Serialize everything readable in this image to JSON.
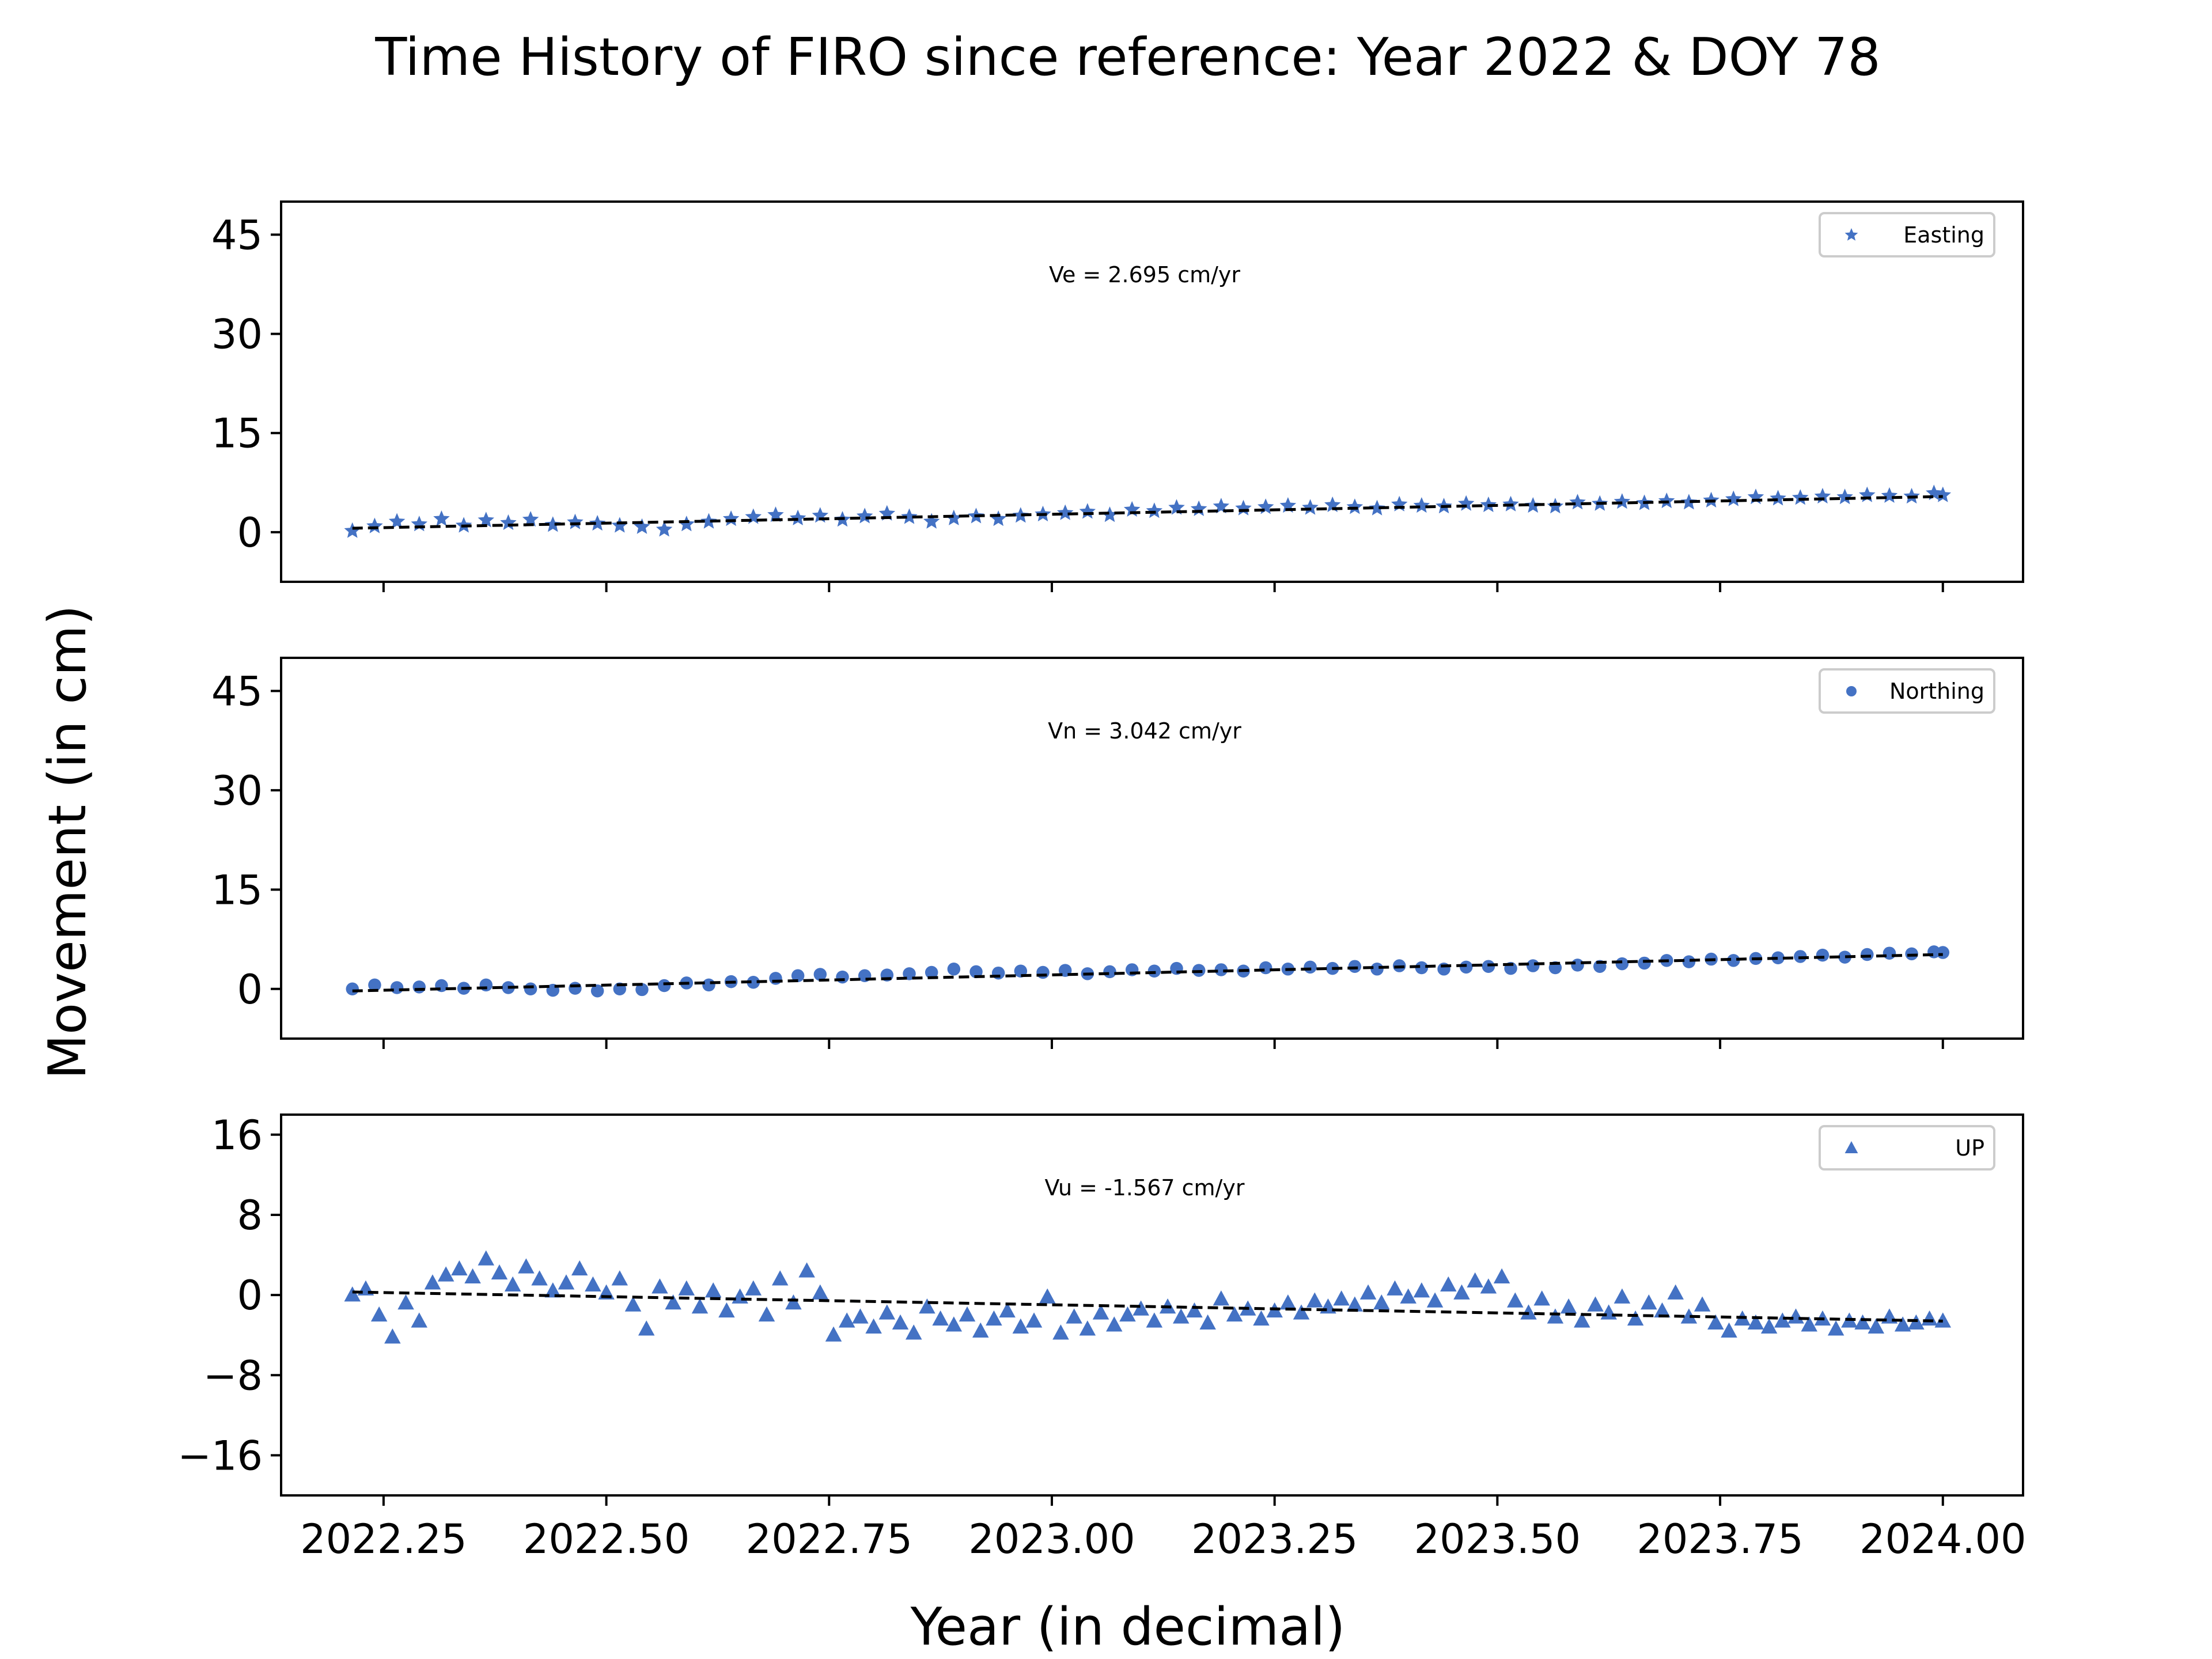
{
  "figure": {
    "title": "Time History of FIRO since reference: Year 2022 & DOY 78",
    "ylabel": "Movement (in cm)",
    "xlabel": "Year (in decimal)"
  },
  "colors": {
    "marker": "#4472c4",
    "trend": "#000000",
    "axes": "#000000"
  },
  "chart_data": [
    {
      "type": "scatter",
      "panel": "easting",
      "legend": "Easting",
      "marker": "star",
      "annotation": "Ve =  2.695 cm/yr",
      "xlim": [
        2022.135,
        2024.09
      ],
      "ylim": [
        -7.5,
        50
      ],
      "yticks": [
        0,
        15,
        30,
        45
      ],
      "ytick_labels": [
        "0",
        "15",
        "30",
        "45"
      ],
      "xticks": [
        2022.25,
        2022.5,
        2022.75,
        2023.0,
        2023.25,
        2023.5,
        2023.75,
        2024.0
      ],
      "show_xtick_labels": false,
      "trend": {
        "x": [
          2022.215,
          2024.0
        ],
        "y": [
          0.6,
          5.4
        ]
      },
      "series": [
        {
          "x": [
            2022.215,
            2022.24,
            2022.265,
            2022.29,
            2022.315,
            2022.34,
            2022.365,
            2022.39,
            2022.415,
            2022.44,
            2022.465,
            2022.49,
            2022.515,
            2022.54,
            2022.565,
            2022.59,
            2022.615,
            2022.64,
            2022.665,
            2022.69,
            2022.715,
            2022.74,
            2022.765,
            2022.79,
            2022.815,
            2022.84,
            2022.865,
            2022.89,
            2022.915,
            2022.94,
            2022.965,
            2022.99,
            2023.015,
            2023.04,
            2023.065,
            2023.09,
            2023.115,
            2023.14,
            2023.165,
            2023.19,
            2023.215,
            2023.24,
            2023.265,
            2023.29,
            2023.315,
            2023.34,
            2023.365,
            2023.39,
            2023.415,
            2023.44,
            2023.465,
            2023.49,
            2023.515,
            2023.54,
            2023.565,
            2023.59,
            2023.615,
            2023.64,
            2023.665,
            2023.69,
            2023.715,
            2023.74,
            2023.765,
            2023.79,
            2023.815,
            2023.84,
            2023.865,
            2023.89,
            2023.915,
            2023.94,
            2023.965,
            2023.99,
            2024.0
          ],
          "y": [
            0.2,
            0.9,
            1.6,
            1.2,
            2.0,
            1.0,
            1.8,
            1.4,
            1.9,
            1.1,
            1.5,
            1.3,
            1.0,
            0.8,
            0.4,
            1.2,
            1.6,
            2.0,
            2.3,
            2.6,
            2.1,
            2.5,
            1.9,
            2.4,
            2.8,
            2.3,
            1.6,
            2.1,
            2.4,
            2.0,
            2.5,
            2.7,
            2.9,
            3.1,
            2.6,
            3.4,
            3.2,
            3.7,
            3.5,
            3.9,
            3.6,
            3.8,
            4.0,
            3.7,
            4.1,
            3.8,
            3.6,
            4.2,
            4.0,
            3.9,
            4.3,
            4.1,
            4.2,
            4.0,
            3.9,
            4.5,
            4.3,
            4.6,
            4.4,
            4.7,
            4.5,
            4.8,
            5.0,
            5.3,
            5.1,
            5.2,
            5.4,
            5.3,
            5.6,
            5.5,
            5.4,
            5.9,
            5.6
          ]
        }
      ]
    },
    {
      "type": "scatter",
      "panel": "northing",
      "legend": "Northing",
      "marker": "circle",
      "annotation": "Vn =  3.042 cm/yr",
      "xlim": [
        2022.135,
        2024.09
      ],
      "ylim": [
        -7.5,
        50
      ],
      "yticks": [
        0,
        15,
        30,
        45
      ],
      "ytick_labels": [
        "0",
        "15",
        "30",
        "45"
      ],
      "xticks": [
        2022.25,
        2022.5,
        2022.75,
        2023.0,
        2023.25,
        2023.5,
        2023.75,
        2024.0
      ],
      "show_xtick_labels": false,
      "trend": {
        "x": [
          2022.215,
          2024.0
        ],
        "y": [
          -0.3,
          5.2
        ]
      },
      "series": [
        {
          "x": [
            2022.215,
            2022.24,
            2022.265,
            2022.29,
            2022.315,
            2022.34,
            2022.365,
            2022.39,
            2022.415,
            2022.44,
            2022.465,
            2022.49,
            2022.515,
            2022.54,
            2022.565,
            2022.59,
            2022.615,
            2022.64,
            2022.665,
            2022.69,
            2022.715,
            2022.74,
            2022.765,
            2022.79,
            2022.815,
            2022.84,
            2022.865,
            2022.89,
            2022.915,
            2022.94,
            2022.965,
            2022.99,
            2023.015,
            2023.04,
            2023.065,
            2023.09,
            2023.115,
            2023.14,
            2023.165,
            2023.19,
            2023.215,
            2023.24,
            2023.265,
            2023.29,
            2023.315,
            2023.34,
            2023.365,
            2023.39,
            2023.415,
            2023.44,
            2023.465,
            2023.49,
            2023.515,
            2023.54,
            2023.565,
            2023.59,
            2023.615,
            2023.64,
            2023.665,
            2023.69,
            2023.715,
            2023.74,
            2023.765,
            2023.79,
            2023.815,
            2023.84,
            2023.865,
            2023.89,
            2023.915,
            2023.94,
            2023.965,
            2023.99,
            2024.0
          ],
          "y": [
            0.0,
            0.6,
            0.2,
            0.3,
            0.5,
            0.1,
            0.6,
            0.2,
            0.0,
            -0.2,
            0.1,
            -0.3,
            0.0,
            -0.1,
            0.5,
            0.9,
            0.6,
            1.1,
            1.0,
            1.6,
            2.0,
            2.2,
            1.8,
            2.0,
            2.1,
            2.3,
            2.5,
            3.0,
            2.6,
            2.4,
            2.7,
            2.5,
            2.8,
            2.3,
            2.6,
            2.9,
            2.7,
            3.1,
            2.8,
            2.9,
            2.7,
            3.2,
            3.0,
            3.3,
            3.1,
            3.4,
            3.0,
            3.5,
            3.2,
            3.0,
            3.3,
            3.4,
            3.1,
            3.5,
            3.2,
            3.6,
            3.4,
            3.8,
            3.9,
            4.3,
            4.1,
            4.5,
            4.3,
            4.6,
            4.7,
            4.9,
            5.1,
            4.8,
            5.2,
            5.4,
            5.3,
            5.6,
            5.5
          ]
        }
      ]
    },
    {
      "type": "scatter",
      "panel": "up",
      "legend": "UP",
      "marker": "triangle",
      "annotation": "Vu = -1.567 cm/yr",
      "xlim": [
        2022.135,
        2024.09
      ],
      "ylim": [
        -20,
        18
      ],
      "yticks": [
        -16,
        -8,
        0,
        8,
        16
      ],
      "ytick_labels": [
        "−16",
        "−8",
        "0",
        "8",
        "16"
      ],
      "xticks": [
        2022.25,
        2022.5,
        2022.75,
        2023.0,
        2023.25,
        2023.5,
        2023.75,
        2024.0
      ],
      "xtick_labels": [
        "2022.25",
        "2022.50",
        "2022.75",
        "2023.00",
        "2023.25",
        "2023.50",
        "2023.75",
        "2024.00"
      ],
      "show_xtick_labels": true,
      "trend": {
        "x": [
          2022.215,
          2024.0
        ],
        "y": [
          0.3,
          -2.6
        ]
      },
      "series": [
        {
          "x": [
            2022.215,
            2022.23,
            2022.245,
            2022.26,
            2022.275,
            2022.29,
            2022.305,
            2022.32,
            2022.335,
            2022.35,
            2022.365,
            2022.38,
            2022.395,
            2022.41,
            2022.425,
            2022.44,
            2022.455,
            2022.47,
            2022.485,
            2022.5,
            2022.515,
            2022.53,
            2022.545,
            2022.56,
            2022.575,
            2022.59,
            2022.605,
            2022.62,
            2022.635,
            2022.65,
            2022.665,
            2022.68,
            2022.695,
            2022.71,
            2022.725,
            2022.74,
            2022.755,
            2022.77,
            2022.785,
            2022.8,
            2022.815,
            2022.83,
            2022.845,
            2022.86,
            2022.875,
            2022.89,
            2022.905,
            2022.92,
            2022.935,
            2022.95,
            2022.965,
            2022.98,
            2022.995,
            2023.01,
            2023.025,
            2023.04,
            2023.055,
            2023.07,
            2023.085,
            2023.1,
            2023.115,
            2023.13,
            2023.145,
            2023.16,
            2023.175,
            2023.19,
            2023.205,
            2023.22,
            2023.235,
            2023.25,
            2023.265,
            2023.28,
            2023.295,
            2023.31,
            2023.325,
            2023.34,
            2023.355,
            2023.37,
            2023.385,
            2023.4,
            2023.415,
            2023.43,
            2023.445,
            2023.46,
            2023.475,
            2023.49,
            2023.505,
            2023.52,
            2023.535,
            2023.55,
            2023.565,
            2023.58,
            2023.595,
            2023.61,
            2023.625,
            2023.64,
            2023.655,
            2023.67,
            2023.685,
            2023.7,
            2023.715,
            2023.73,
            2023.745,
            2023.76,
            2023.775,
            2023.79,
            2023.805,
            2023.82,
            2023.835,
            2023.85,
            2023.865,
            2023.88,
            2023.895,
            2023.91,
            2023.925,
            2023.94,
            2023.955,
            2023.97,
            2023.985,
            2024.0
          ],
          "y": [
            0.0,
            0.6,
            -2.0,
            -4.2,
            -0.8,
            -2.6,
            1.2,
            2.0,
            2.6,
            1.8,
            3.6,
            2.2,
            1.0,
            2.8,
            1.6,
            0.4,
            1.2,
            2.6,
            1.0,
            0.2,
            1.6,
            -1.0,
            -3.4,
            0.8,
            -0.8,
            0.6,
            -1.2,
            0.4,
            -1.6,
            -0.2,
            0.6,
            -2.0,
            1.6,
            -0.8,
            2.4,
            0.2,
            -4.0,
            -2.6,
            -2.2,
            -3.2,
            -1.8,
            -2.8,
            -3.8,
            -1.2,
            -2.4,
            -3.0,
            -2.0,
            -3.6,
            -2.4,
            -1.6,
            -3.2,
            -2.6,
            -0.2,
            -3.8,
            -2.2,
            -3.4,
            -1.8,
            -3.0,
            -2.0,
            -1.4,
            -2.6,
            -1.2,
            -2.2,
            -1.6,
            -2.8,
            -0.4,
            -2.0,
            -1.4,
            -2.4,
            -1.6,
            -0.8,
            -1.8,
            -0.6,
            -1.2,
            -0.4,
            -1.0,
            0.2,
            -0.8,
            0.6,
            -0.2,
            0.4,
            -0.6,
            1.0,
            0.2,
            1.4,
            0.8,
            1.8,
            -0.6,
            -1.8,
            -0.4,
            -2.2,
            -1.2,
            -2.6,
            -1.0,
            -1.8,
            -0.2,
            -2.4,
            -0.8,
            -1.6,
            0.2,
            -2.2,
            -1.0,
            -2.8,
            -3.6,
            -2.4,
            -2.8,
            -3.2,
            -2.6,
            -2.2,
            -3.0,
            -2.4,
            -3.4,
            -2.6,
            -2.8,
            -3.2,
            -2.2,
            -3.0,
            -2.8,
            -2.4,
            -2.6
          ]
        }
      ]
    }
  ]
}
